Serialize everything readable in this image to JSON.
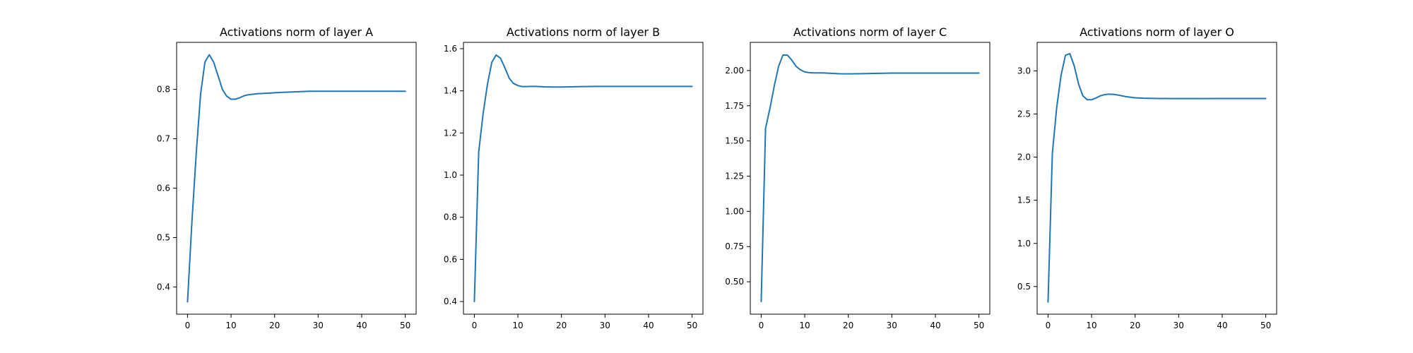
{
  "figure": {
    "background": "#ffffff",
    "line_color": "#1f77b4",
    "axis_color": "#000000"
  },
  "chart_data": [
    {
      "type": "line",
      "title": "Activations norm of layer A",
      "xlabel": "",
      "ylabel": "",
      "xlim": [
        -2.5,
        52.5
      ],
      "ylim": [
        0.345,
        0.895
      ],
      "xticks": [
        0,
        10,
        20,
        30,
        40,
        50
      ],
      "yticks": [
        0.4,
        0.5,
        0.6,
        0.7,
        0.8
      ],
      "ytick_labels": [
        "0.4",
        "0.5",
        "0.6",
        "0.7",
        "0.8"
      ],
      "grid": false,
      "series": [
        {
          "x": [
            0,
            1,
            2,
            3,
            4,
            5,
            6,
            7,
            8,
            9,
            10,
            11,
            12,
            13,
            14,
            15,
            16,
            18,
            20,
            22,
            25,
            28,
            30,
            35,
            40,
            45,
            50
          ],
          "y": [
            0.37,
            0.53,
            0.67,
            0.79,
            0.855,
            0.87,
            0.855,
            0.828,
            0.8,
            0.786,
            0.78,
            0.78,
            0.783,
            0.787,
            0.789,
            0.79,
            0.791,
            0.792,
            0.793,
            0.794,
            0.795,
            0.796,
            0.796,
            0.796,
            0.796,
            0.796,
            0.796
          ]
        }
      ]
    },
    {
      "type": "line",
      "title": "Activations norm of layer B",
      "xlabel": "",
      "ylabel": "",
      "xlim": [
        -2.5,
        52.5
      ],
      "ylim": [
        0.34,
        1.63
      ],
      "xticks": [
        0,
        10,
        20,
        30,
        40,
        50
      ],
      "yticks": [
        0.4,
        0.6,
        0.8,
        1.0,
        1.2,
        1.4,
        1.6
      ],
      "ytick_labels": [
        "0.4",
        "0.6",
        "0.8",
        "1.0",
        "1.2",
        "1.4",
        "1.6"
      ],
      "grid": false,
      "series": [
        {
          "x": [
            0,
            1,
            2,
            3,
            4,
            5,
            6,
            7,
            8,
            9,
            10,
            11,
            12,
            13,
            14,
            15,
            16,
            18,
            20,
            22,
            25,
            28,
            30,
            35,
            40,
            45,
            50
          ],
          "y": [
            0.4,
            1.11,
            1.29,
            1.43,
            1.535,
            1.57,
            1.555,
            1.51,
            1.46,
            1.435,
            1.425,
            1.42,
            1.42,
            1.421,
            1.421,
            1.42,
            1.419,
            1.418,
            1.418,
            1.419,
            1.42,
            1.421,
            1.421,
            1.421,
            1.421,
            1.421,
            1.421
          ]
        }
      ]
    },
    {
      "type": "line",
      "title": "Activations norm of layer C",
      "xlabel": "",
      "ylabel": "",
      "xlim": [
        -2.5,
        52.5
      ],
      "ylim": [
        0.27,
        2.2
      ],
      "xticks": [
        0,
        10,
        20,
        30,
        40,
        50
      ],
      "yticks": [
        0.5,
        0.75,
        1.0,
        1.25,
        1.5,
        1.75,
        2.0
      ],
      "ytick_labels": [
        "0.50",
        "0.75",
        "1.00",
        "1.25",
        "1.50",
        "1.75",
        "2.00"
      ],
      "grid": false,
      "series": [
        {
          "x": [
            0,
            1,
            2,
            3,
            4,
            5,
            6,
            7,
            8,
            9,
            10,
            11,
            12,
            13,
            14,
            15,
            16,
            18,
            20,
            22,
            25,
            28,
            30,
            35,
            40,
            45,
            50
          ],
          "y": [
            0.36,
            1.59,
            1.73,
            1.89,
            2.03,
            2.11,
            2.11,
            2.075,
            2.03,
            2.005,
            1.99,
            1.985,
            1.983,
            1.983,
            1.983,
            1.982,
            1.98,
            1.977,
            1.976,
            1.977,
            1.979,
            1.981,
            1.982,
            1.982,
            1.982,
            1.982,
            1.982
          ]
        }
      ]
    },
    {
      "type": "line",
      "title": "Activations norm of layer O",
      "xlabel": "",
      "ylabel": "",
      "xlim": [
        -2.5,
        52.5
      ],
      "ylim": [
        0.18,
        3.33
      ],
      "xticks": [
        0,
        10,
        20,
        30,
        40,
        50
      ],
      "yticks": [
        0.5,
        1.0,
        1.5,
        2.0,
        2.5,
        3.0
      ],
      "ytick_labels": [
        "0.5",
        "1.0",
        "1.5",
        "2.0",
        "2.5",
        "3.0"
      ],
      "grid": false,
      "series": [
        {
          "x": [
            0,
            1,
            2,
            3,
            4,
            5,
            6,
            7,
            8,
            9,
            10,
            11,
            12,
            13,
            14,
            15,
            16,
            18,
            20,
            22,
            25,
            28,
            30,
            35,
            40,
            45,
            50
          ],
          "y": [
            0.32,
            2.05,
            2.58,
            2.95,
            3.18,
            3.2,
            3.06,
            2.85,
            2.71,
            2.665,
            2.665,
            2.685,
            2.71,
            2.725,
            2.73,
            2.728,
            2.72,
            2.7,
            2.688,
            2.683,
            2.68,
            2.679,
            2.679,
            2.679,
            2.68,
            2.68,
            2.68
          ]
        }
      ]
    }
  ]
}
